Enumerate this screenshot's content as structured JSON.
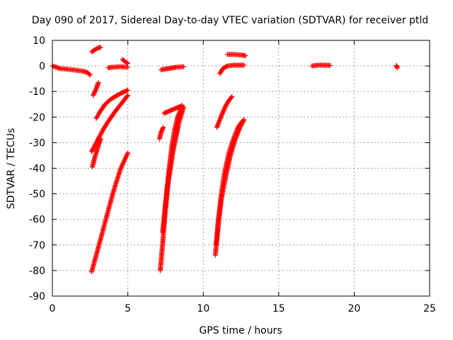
{
  "chart_data": {
    "type": "scatter",
    "title": "Day 090 of 2017, Sidereal Day-to-day VTEC variation (SDTVAR) for receiver ptld",
    "xlabel": "GPS time / hours",
    "ylabel": "SDTVAR / TECUs",
    "xlim": [
      0,
      25
    ],
    "ylim": [
      -90,
      10
    ],
    "xticks": [
      0,
      5,
      10,
      15,
      20,
      25
    ],
    "yticks": [
      10,
      0,
      -10,
      -20,
      -30,
      -40,
      -50,
      -60,
      -70,
      -80,
      -90
    ],
    "grid": true,
    "marker": "plus",
    "color": "#ff0000",
    "series": [
      {
        "x": [
          0.0,
          0.5,
          1.0,
          1.5,
          2.0,
          2.3,
          2.5
        ],
        "y": [
          0,
          -1,
          -1.3,
          -1.6,
          -2.0,
          -2.5,
          -3.5
        ]
      },
      {
        "x": [
          2.6,
          2.8,
          3.0,
          3.2
        ],
        "y": [
          5.5,
          6.3,
          7.0,
          7.3
        ]
      },
      {
        "x": [
          3.7,
          4.0,
          4.5,
          5.0
        ],
        "y": [
          -0.7,
          -0.5,
          -0.3,
          -0.5
        ]
      },
      {
        "x": [
          4.65,
          4.8,
          5.0
        ],
        "y": [
          2.5,
          1.8,
          1.0
        ]
      },
      {
        "x": [
          2.7,
          2.9,
          3.05
        ],
        "y": [
          -11.5,
          -9.0,
          -6.5
        ]
      },
      {
        "x": [
          2.9,
          3.2,
          3.5,
          3.8,
          4.2,
          4.6,
          5.0
        ],
        "y": [
          -20.5,
          -17.5,
          -15.0,
          -13.3,
          -11.8,
          -10.5,
          -9.5
        ]
      },
      {
        "x": [
          2.6,
          3.0,
          3.4,
          3.8,
          4.2,
          4.6,
          5.0
        ],
        "y": [
          -33.5,
          -29.0,
          -24.5,
          -20.8,
          -17.5,
          -14.5,
          -11.5
        ]
      },
      {
        "x": [
          2.65,
          2.8,
          3.0,
          3.2
        ],
        "y": [
          -39.5,
          -36.0,
          -32.0,
          -28.5
        ]
      },
      {
        "x": [
          2.6,
          3.0,
          3.5,
          4.0,
          4.5,
          5.0
        ],
        "y": [
          -80.5,
          -72.0,
          -61.0,
          -50.0,
          -40.5,
          -34.0
        ]
      },
      {
        "x": [
          7.2,
          7.7,
          8.2,
          8.7
        ],
        "y": [
          -1.5,
          -1.0,
          -0.5,
          -0.3
        ]
      },
      {
        "x": [
          7.1,
          7.2,
          7.35
        ],
        "y": [
          -28.5,
          -26.0,
          -24.0
        ]
      },
      {
        "x": [
          7.4,
          7.8,
          8.2,
          8.6
        ],
        "y": [
          -18.5,
          -17.5,
          -16.5,
          -15.5
        ]
      },
      {
        "x": [
          7.3,
          7.6,
          8.0,
          8.4,
          8.7
        ],
        "y": [
          -65.0,
          -48.0,
          -33.0,
          -22.0,
          -16.0
        ]
      },
      {
        "x": [
          7.5,
          7.7,
          7.9,
          8.1,
          8.3,
          8.5
        ],
        "y": [
          -55.0,
          -42.0,
          -32.0,
          -25.0,
          -20.0,
          -17.0
        ]
      },
      {
        "x": [
          7.15,
          7.3,
          7.5,
          7.7,
          8.0,
          8.3
        ],
        "y": [
          -80.0,
          -70.0,
          -56.0,
          -44.0,
          -33.0,
          -24.0
        ]
      },
      {
        "x": [
          11.1,
          11.3,
          11.6,
          12.0,
          12.7
        ],
        "y": [
          -3.0,
          -1.0,
          0.0,
          0.3,
          0.3
        ]
      },
      {
        "x": [
          11.6,
          12.0,
          12.5,
          12.8
        ],
        "y": [
          4.5,
          4.5,
          4.3,
          4.0
        ]
      },
      {
        "x": [
          10.9,
          11.1,
          11.3,
          11.5,
          11.7,
          11.9
        ],
        "y": [
          -24.0,
          -21.0,
          -18.0,
          -15.5,
          -13.5,
          -12.0
        ]
      },
      {
        "x": [
          10.8,
          11.0,
          11.2,
          11.5,
          11.8,
          12.1,
          12.4,
          12.7
        ],
        "y": [
          -74.0,
          -62.0,
          -52.0,
          -43.0,
          -35.0,
          -29.0,
          -24.5,
          -21.0
        ]
      },
      {
        "x": [
          10.85,
          11.0,
          11.2,
          11.4,
          11.7,
          12.0,
          12.3,
          12.6
        ],
        "y": [
          -70.0,
          -60.0,
          -50.0,
          -42.0,
          -34.0,
          -28.5,
          -24.0,
          -21.5
        ]
      },
      {
        "x": [
          17.2,
          17.6,
          18.0,
          18.4
        ],
        "y": [
          0.0,
          0.3,
          0.3,
          0.2
        ]
      },
      {
        "x": [
          22.8,
          22.85
        ],
        "y": [
          0.2,
          -0.8
        ]
      }
    ]
  }
}
